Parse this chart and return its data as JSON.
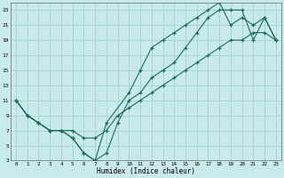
{
  "xlabel": "Humidex (Indice chaleur)",
  "bg_color": "#c8eaea",
  "grid_color": "#9ecece",
  "line_color": "#1a6b5a",
  "xlim": [
    -0.5,
    23.5
  ],
  "ylim": [
    3,
    24
  ],
  "xticks": [
    0,
    1,
    2,
    3,
    4,
    5,
    6,
    7,
    8,
    9,
    10,
    11,
    12,
    13,
    14,
    15,
    16,
    17,
    18,
    19,
    20,
    21,
    22,
    23
  ],
  "yticks": [
    3,
    5,
    7,
    9,
    11,
    13,
    15,
    17,
    19,
    21,
    23
  ],
  "series": [
    {
      "x": [
        0,
        1,
        2,
        3,
        4,
        5,
        6,
        7,
        8,
        9,
        10,
        11,
        12,
        13,
        14,
        15,
        16,
        17,
        18,
        19,
        20,
        21,
        22,
        23
      ],
      "y": [
        11,
        9,
        8,
        7,
        7,
        6,
        4,
        3,
        4,
        8,
        11,
        12,
        14,
        15,
        16,
        18,
        20,
        22,
        23,
        23,
        23,
        19,
        22,
        19
      ]
    },
    {
      "x": [
        0,
        1,
        2,
        3,
        4,
        5,
        6,
        7,
        8,
        10,
        11,
        12,
        13,
        14,
        15,
        16,
        17,
        18,
        19,
        20,
        21,
        22,
        23
      ],
      "y": [
        11,
        9,
        8,
        7,
        7,
        6,
        4,
        3,
        8,
        12,
        15,
        18,
        19,
        20,
        21,
        22,
        23,
        24,
        21,
        22,
        21,
        22,
        19
      ]
    },
    {
      "x": [
        0,
        1,
        2,
        3,
        4,
        5,
        6,
        7,
        8,
        9,
        10,
        11,
        12,
        13,
        14,
        15,
        16,
        17,
        18,
        19,
        20,
        21,
        22,
        23
      ],
      "y": [
        11,
        9,
        8,
        7,
        7,
        7,
        6,
        6,
        7,
        9,
        10,
        11,
        12,
        13,
        14,
        15,
        16,
        17,
        18,
        19,
        19,
        20,
        20,
        19
      ]
    }
  ]
}
